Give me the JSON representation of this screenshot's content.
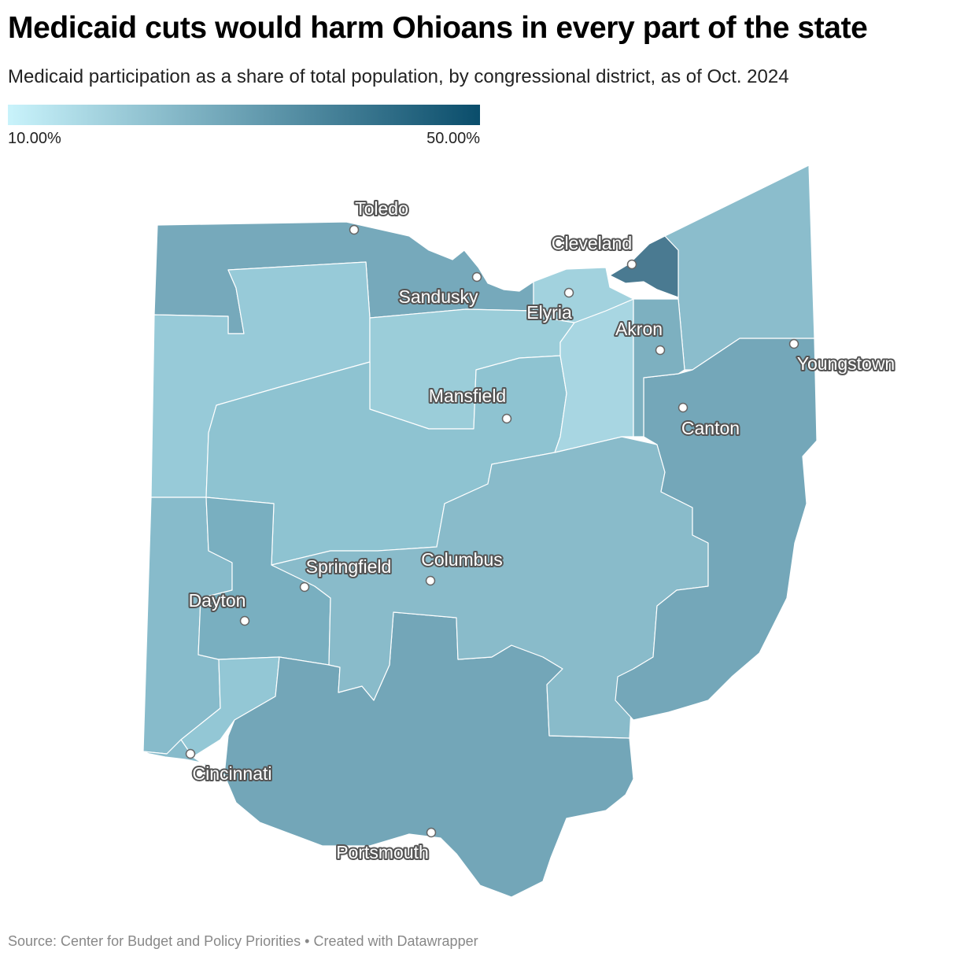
{
  "title": "Medicaid cuts would harm Ohioans in every part of the state",
  "subtitle": "Medicaid participation as a share of total population, by congressional district, as of Oct. 2024",
  "legend": {
    "min_label": "10.00%",
    "max_label": "50.00%",
    "min_color": "#c9f3fb",
    "max_color": "#0a4d6b"
  },
  "district_colors": {
    "nw": "#76a9bb",
    "west_central": "#97cad8",
    "north_central": "#9bcdd9",
    "central_north": "#8ec3d1",
    "southwest": "#87bbcb",
    "dayton": "#79afc0",
    "cincinnati_north": "#93c7d5",
    "south": "#73a6b8",
    "central": "#89bbca",
    "east": "#74a7b9",
    "northeast": "#8bbdcc",
    "akron_south": "#a8d6e2",
    "cleveland": "#4a7a91",
    "elyria": "#a2d2de",
    "summit": "#7db0c0"
  },
  "cities": [
    {
      "name": "Toledo",
      "dark": false
    },
    {
      "name": "Sandusky",
      "dark": false
    },
    {
      "name": "Cleveland",
      "dark": false
    },
    {
      "name": "Elyria",
      "dark": false
    },
    {
      "name": "Akron",
      "dark": false
    },
    {
      "name": "Youngstown",
      "dark": false
    },
    {
      "name": "Mansfield",
      "dark": false
    },
    {
      "name": "Canton",
      "dark": false
    },
    {
      "name": "Columbus",
      "dark": false
    },
    {
      "name": "Springfield",
      "dark": false
    },
    {
      "name": "Dayton",
      "dark": false
    },
    {
      "name": "Cincinnati",
      "dark": false
    },
    {
      "name": "Portsmouth",
      "dark": false
    }
  ],
  "footer": "Source: Center for Budget and Policy Priorities • Created with Datawrapper"
}
